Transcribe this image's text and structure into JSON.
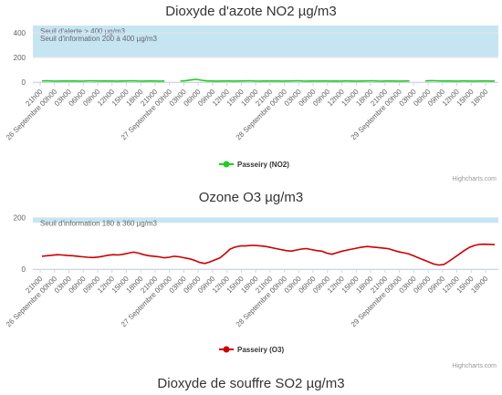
{
  "chart_data": [
    {
      "type": "line",
      "title": "Dioxyde d'azote NO2 µg/m3",
      "credits": "Highcharts.com",
      "ylim": [
        0,
        400
      ],
      "yticks": [
        "0",
        "200",
        "400"
      ],
      "grid": true,
      "legend_position": "bottom-center",
      "color": "#22cc22",
      "x_start": "26 Septembre 21h00",
      "x_end": "29 Septembre 21h00",
      "x_tick_labels": [
        "21h00",
        "26 Septembre 00h00",
        "03h00",
        "06h00",
        "09h00",
        "12h00",
        "15h00",
        "18h00",
        "21h00",
        "27 Septembre 00h00",
        "03h00",
        "06h00",
        "09h00",
        "12h00",
        "15h00",
        "18h00",
        "21h00",
        "28 Septembre 00h00",
        "03h00",
        "06h00",
        "09h00",
        "12h00",
        "15h00",
        "18h00",
        "21h00",
        "29 Septembre 00h00",
        "03h00",
        "06h00",
        "09h00",
        "12h00",
        "15h00",
        "18h00"
      ],
      "plot_bands": [
        {
          "from": 400,
          "to": 460,
          "label": "Seuil d'alerte > 400 µg/m3",
          "color": "#c6e5f3"
        },
        {
          "from": 200,
          "to": 400,
          "label": "Seuil d'information 200 à 400 µg/m3",
          "color": "#c6e5f3"
        }
      ],
      "series": [
        {
          "name": "Passeiry (NO2)",
          "values": [
            10,
            11,
            9,
            8,
            10,
            9,
            10,
            8,
            9,
            11,
            10,
            9,
            10,
            9,
            8,
            9,
            10,
            11,
            9,
            8,
            10,
            9,
            8,
            9,
            null,
            null,
            9,
            12,
            18,
            22,
            15,
            10,
            9,
            8,
            9,
            10,
            8,
            9,
            10,
            11,
            9,
            8,
            10,
            9,
            10,
            8,
            9,
            10,
            11,
            9,
            8,
            10,
            9,
            10,
            8,
            9,
            8,
            10,
            9,
            8,
            9,
            10,
            11,
            9,
            8,
            10,
            9,
            8,
            9,
            10,
            null,
            null,
            10,
            12,
            11,
            9,
            10,
            9,
            8,
            10,
            9,
            8,
            9,
            10,
            9,
            8
          ]
        }
      ]
    },
    {
      "type": "line",
      "title": "Ozone O3 µg/m3",
      "credits": "Highcharts.com",
      "ylim": [
        0,
        220
      ],
      "yticks": [
        "0",
        "200"
      ],
      "grid": true,
      "legend_position": "bottom-center",
      "color": "#cc0000",
      "x_start": "26 Septembre 21h00",
      "x_end": "29 Septembre 21h00",
      "x_tick_labels": [
        "21h00",
        "26 Septembre 00h00",
        "03h00",
        "06h00",
        "09h00",
        "12h00",
        "15h00",
        "18h00",
        "21h00",
        "27 Septembre 00h00",
        "03h00",
        "06h00",
        "09h00",
        "12h00",
        "15h00",
        "18h00",
        "21h00",
        "28 Septembre 00h00",
        "03h00",
        "06h00",
        "09h00",
        "12h00",
        "15h00",
        "18h00",
        "21h00",
        "29 Septembre 00h00",
        "03h00",
        "06h00",
        "09h00",
        "12h00",
        "15h00",
        "18h00"
      ],
      "plot_bands": [
        {
          "from": 180,
          "to": 200,
          "label": "Seuil d'information 180 à 360 µg/m3",
          "color": "#c6e5f3"
        }
      ],
      "series": [
        {
          "name": "Passeiry (O3)",
          "values": [
            50,
            52,
            54,
            56,
            55,
            53,
            52,
            50,
            48,
            46,
            45,
            47,
            50,
            54,
            56,
            55,
            58,
            62,
            66,
            62,
            56,
            52,
            50,
            48,
            44,
            46,
            50,
            48,
            44,
            40,
            34,
            26,
            22,
            28,
            36,
            44,
            60,
            78,
            86,
            90,
            90,
            92,
            92,
            90,
            88,
            84,
            80,
            76,
            72,
            70,
            74,
            78,
            80,
            76,
            72,
            70,
            62,
            58,
            64,
            70,
            74,
            78,
            82,
            86,
            88,
            86,
            84,
            82,
            80,
            74,
            68,
            64,
            60,
            52,
            44,
            36,
            28,
            20,
            16,
            18,
            30,
            44,
            58,
            72,
            84,
            92,
            96,
            97,
            96,
            95
          ]
        }
      ]
    }
  ],
  "next_chart": {
    "title": "Dioxyde de souffre SO2 µg/m3"
  }
}
